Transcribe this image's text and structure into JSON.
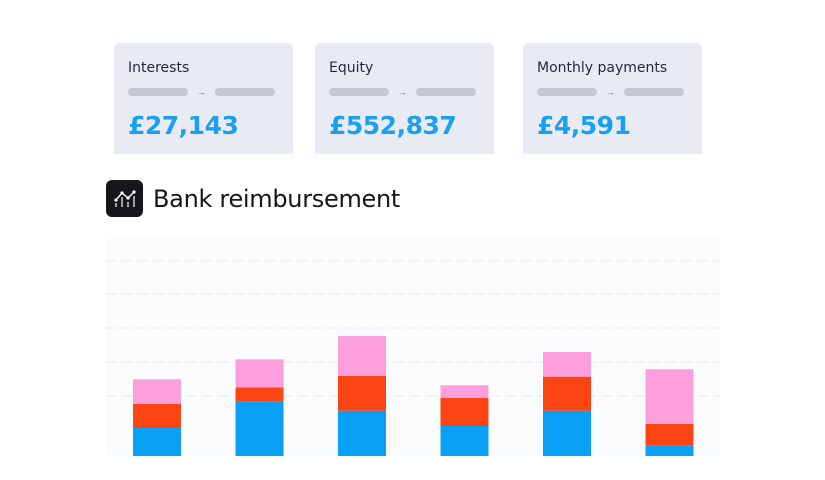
{
  "cards": [
    {
      "title": "Interests",
      "arrow": "→",
      "value": "£27,143"
    },
    {
      "title": "Equity",
      "arrow": "→",
      "value": "£552,837"
    },
    {
      "title": "Monthly payments",
      "arrow": "→",
      "value": "£4,591"
    }
  ],
  "heading": {
    "title": "Bank reimbursement",
    "icon": "line-chart-icon"
  },
  "colors": {
    "value_blue": "#1aa0f0",
    "bar_blue": "#0aa0f5",
    "bar_red": "#fd4513",
    "bar_pink": "#fd9fdc",
    "card_bg": "#e8ebf4"
  },
  "chart_data": {
    "type": "bar",
    "stacked": true,
    "categories": [
      "",
      "",
      "",
      "",
      "",
      ""
    ],
    "series": [
      {
        "values": [
          42,
          82,
          68,
          45,
          68,
          16
        ],
        "color": "#0aa0f5"
      },
      {
        "values": [
          36,
          21,
          52,
          42,
          51,
          32
        ],
        "color": "#fd4513"
      },
      {
        "values": [
          37,
          42,
          60,
          19,
          37,
          82
        ],
        "color": "#fd9fdc"
      }
    ],
    "ylim": [
      0,
      180
    ],
    "grid": true,
    "legend": "none"
  }
}
